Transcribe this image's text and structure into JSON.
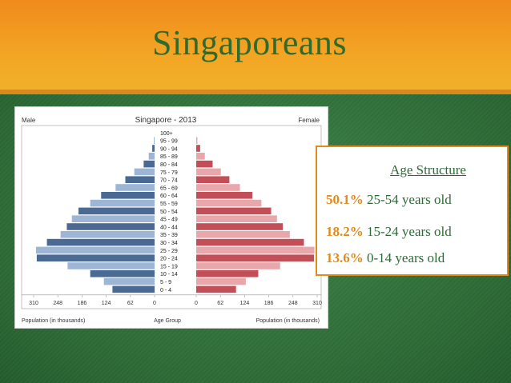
{
  "slide": {
    "title": "Singaporeans"
  },
  "info_box": {
    "heading": "Age Structure",
    "stats": [
      {
        "percent": "50.1%",
        "label": "25-54 years old"
      },
      {
        "percent": "18.2%",
        "label": "15-24 years old"
      },
      {
        "percent": "13.6%",
        "label": "0-14 years old"
      }
    ]
  },
  "colors": {
    "male_dark": "#4a6a94",
    "male_light": "#9eb6d6",
    "female_dark": "#c24e58",
    "female_light": "#e8a7aa",
    "header_orange": "#f3a524",
    "background_green": "#2c6a36",
    "title_green": "#2f6b2c",
    "accent_orange": "#e28b1a"
  },
  "chart_data": {
    "type": "bar",
    "title": "Singapore - 2013",
    "left_label": "Male",
    "right_label": "Female",
    "center_header": "Age Group",
    "xlabel_left": "Population (in thousands)",
    "xlabel_right": "Population (in thousands)",
    "xticks": [
      "310",
      "248",
      "186",
      "124",
      "62",
      "0",
      "0",
      "62",
      "124",
      "186",
      "248",
      "310"
    ],
    "xlim": [
      0,
      310
    ],
    "categories": [
      "100+",
      "95 - 99",
      "90 - 94",
      "85 - 89",
      "80 - 84",
      "75 - 79",
      "70 - 74",
      "65 - 69",
      "60 - 64",
      "55 - 59",
      "50 - 54",
      "45 - 49",
      "40 - 44",
      "35 - 39",
      "30 - 34",
      "25 - 29",
      "20 - 24",
      "15 - 19",
      "10 - 14",
      "5 - 9",
      "0 - 4"
    ],
    "series": [
      {
        "name": "Male",
        "values": [
          0,
          2,
          6,
          15,
          28,
          52,
          75,
          100,
          137,
          165,
          195,
          212,
          225,
          241,
          276,
          304,
          302,
          223,
          165,
          130,
          108
        ]
      },
      {
        "name": "Female",
        "values": [
          0,
          3,
          10,
          22,
          42,
          63,
          85,
          112,
          144,
          167,
          192,
          207,
          222,
          240,
          276,
          303,
          302,
          215,
          159,
          127,
          102
        ]
      }
    ]
  }
}
